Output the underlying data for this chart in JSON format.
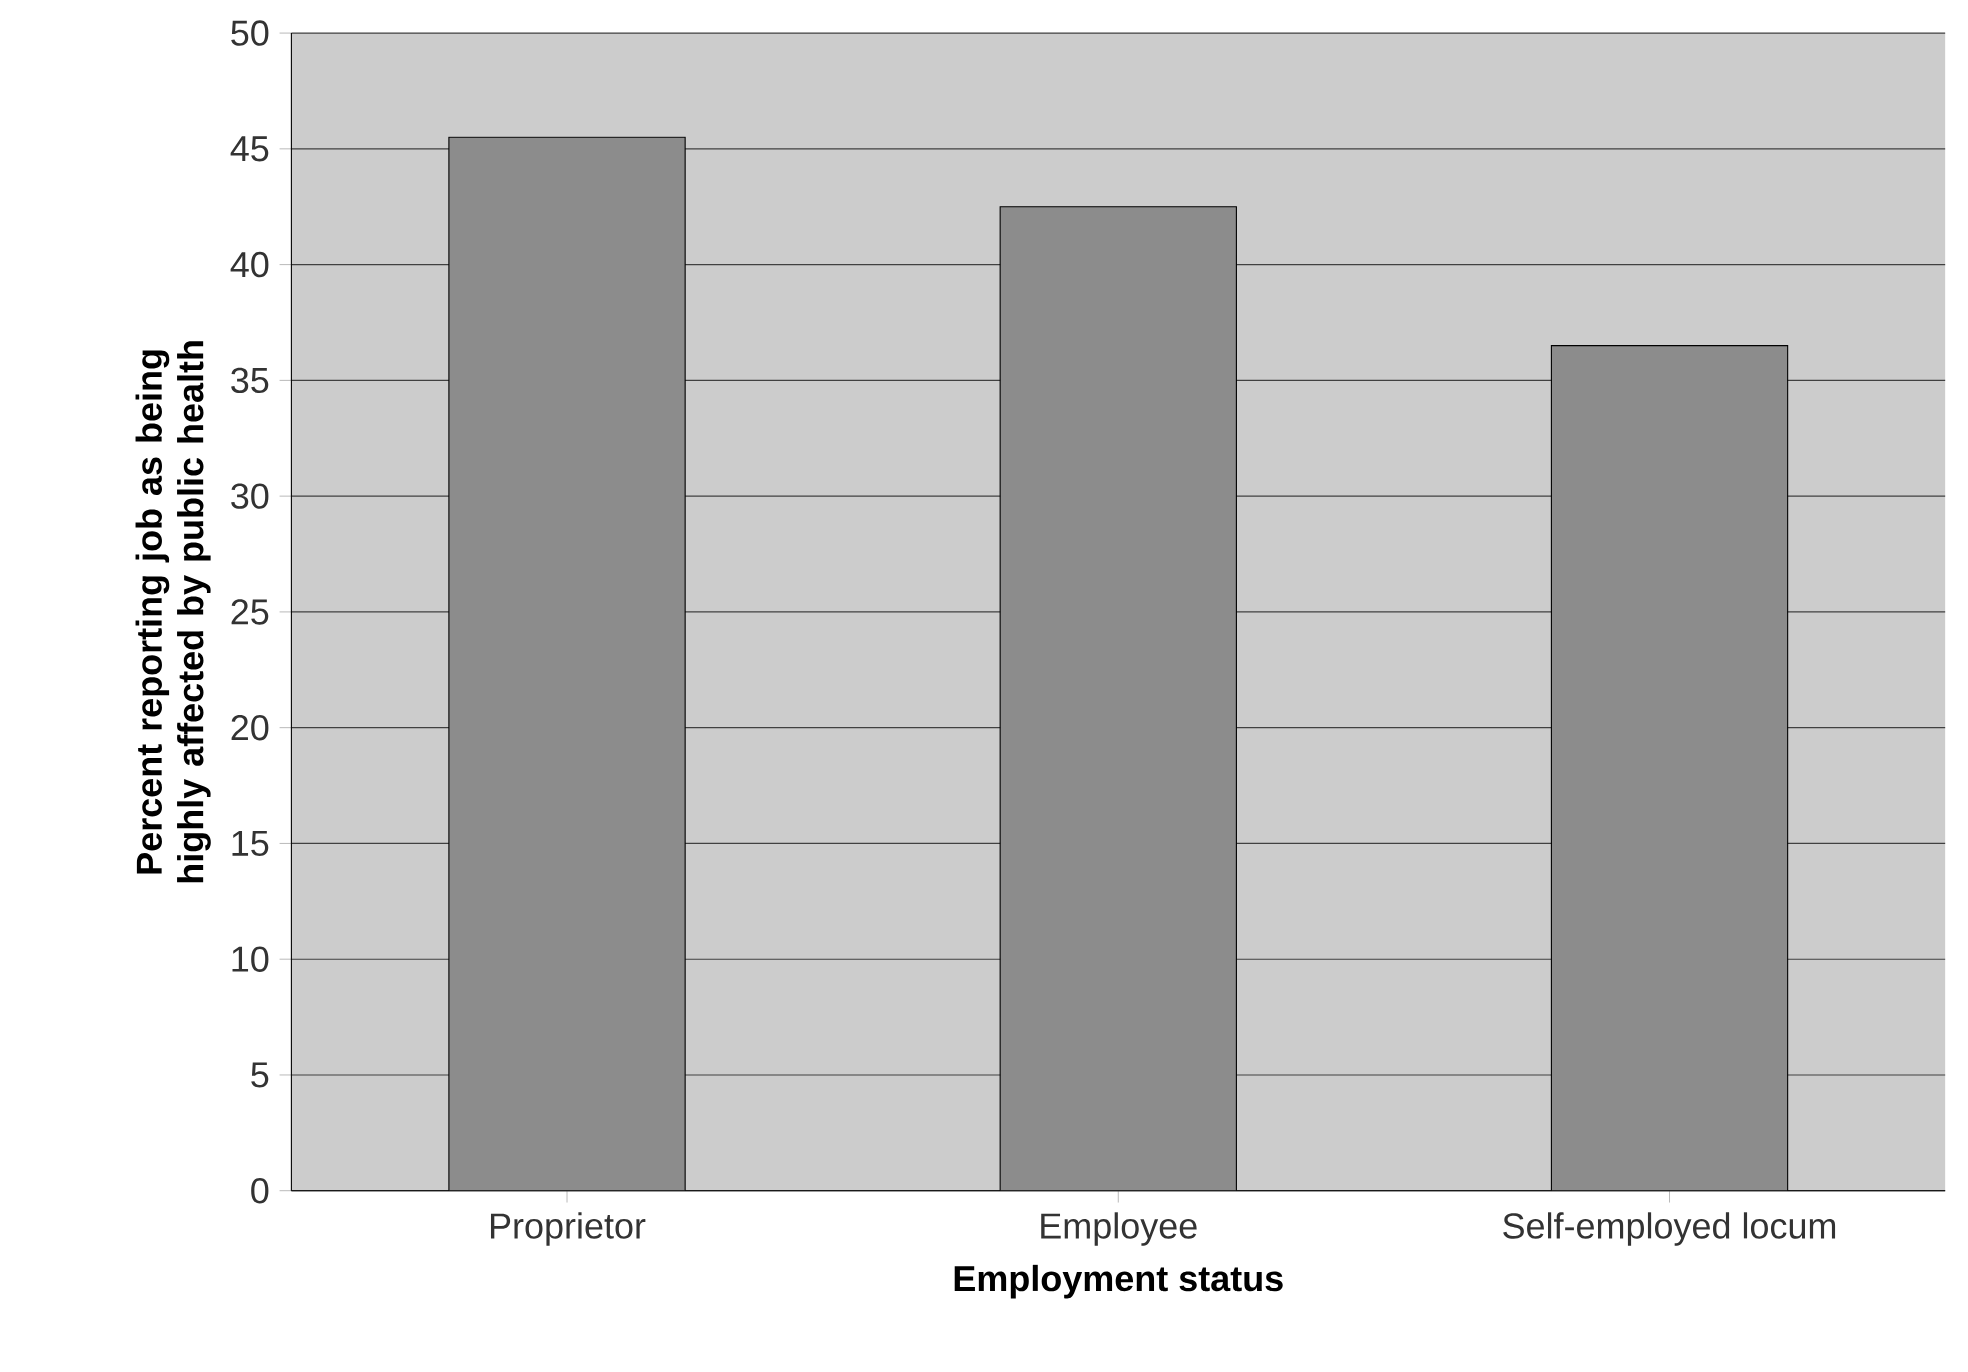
{
  "chart_data": {
    "type": "bar",
    "xlabel": "Employment status",
    "ylabel": "Percent reporting job as being highly affected by public health",
    "categories": [
      "Proprietor",
      "Employee",
      "Self-employed locum"
    ],
    "values": [
      45.5,
      42.5,
      36.5
    ],
    "color": "#8c8c8c",
    "ylim": [
      0,
      50
    ],
    "yticks": [
      0,
      5,
      10,
      15,
      20,
      25,
      30,
      35,
      40,
      45,
      50
    ],
    "grid": "y"
  }
}
